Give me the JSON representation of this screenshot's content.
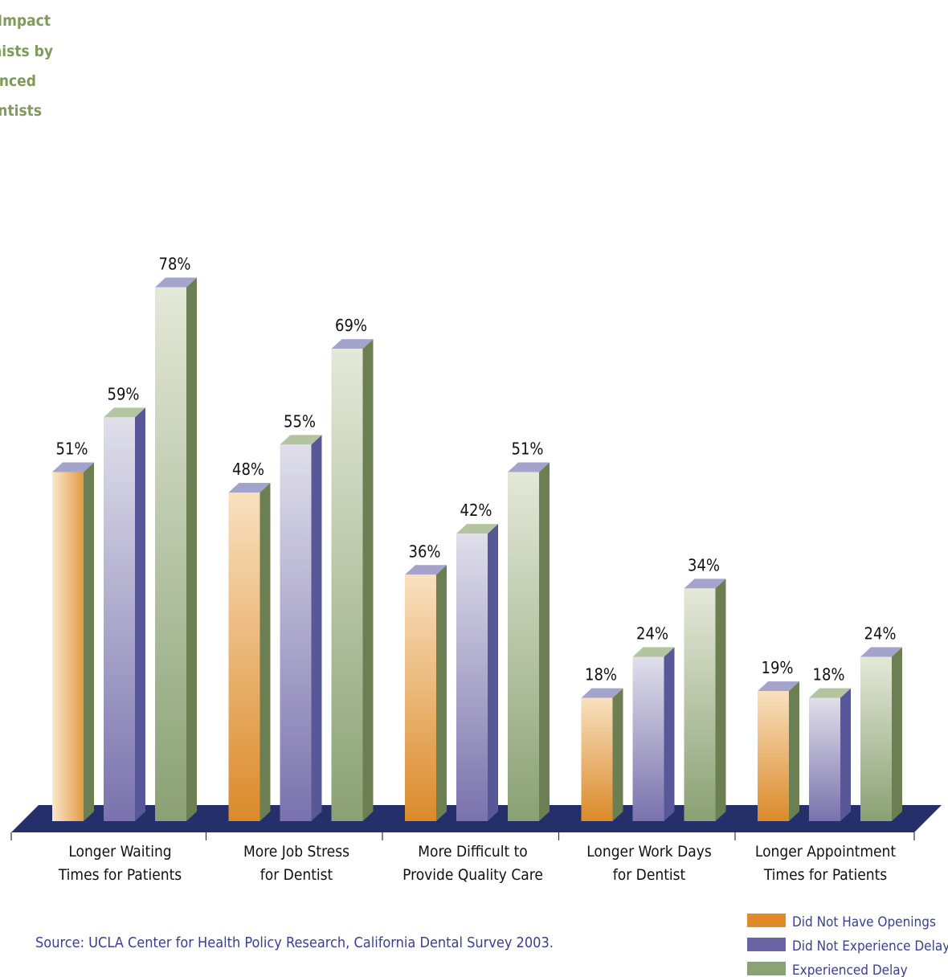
{
  "title_lines": [
    "Impact",
    "nists by",
    "enced",
    "entists"
  ],
  "source": "Source: UCLA Center for Health Policy Research, California Dental Survey 2003.",
  "colors": {
    "floor": "#25306a",
    "did_not_have_openings": "#e08a2a",
    "did_not_experience_delay": "#6a64a4",
    "experienced_delay": "#8ba273",
    "title": "#7f9a5a",
    "source_text": "#3a3f8f"
  },
  "chart_data": {
    "type": "bar",
    "categories": [
      "Longer Waiting\nTimes for Patients",
      "More Job Stress\nfor Dentist",
      "More Difficult to\nProvide Quality Care",
      "Longer Work Days\nfor Dentist",
      "Longer Appointment\nTimes for Patients"
    ],
    "series": [
      {
        "name": "Did Not Have Openings",
        "values": [
          51,
          48,
          36,
          18,
          19
        ],
        "labels": [
          "51%",
          "48%",
          "36%",
          "18%",
          "19%"
        ]
      },
      {
        "name": "Did Not Experience Delay",
        "values": [
          59,
          55,
          42,
          24,
          18
        ],
        "labels": [
          "59%",
          "55%",
          "42%",
          "24%",
          "18%"
        ]
      },
      {
        "name": "Experienced Delay",
        "values": [
          78,
          69,
          51,
          34,
          24
        ],
        "labels": [
          "78%",
          "69%",
          "51%",
          "34%",
          "24%"
        ]
      }
    ],
    "ylim": [
      0,
      100
    ],
    "grid": false,
    "legend_position": "bottom-right",
    "style": "3d"
  }
}
